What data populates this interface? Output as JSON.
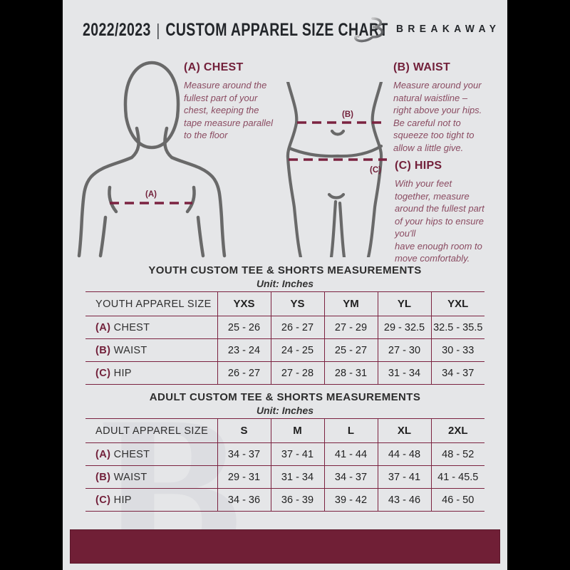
{
  "header": {
    "year": "2022/2023",
    "divider": "|",
    "title": "CUSTOM APPAREL SIZE CHART",
    "brand": "BREAKAWAY"
  },
  "diagram": {
    "chest": {
      "heading": "(A) CHEST",
      "body": "Measure around the\nfullest part of your\nchest, keeping the\ntape measure parallel\nto the floor"
    },
    "waist": {
      "heading": "(B) WAIST",
      "body": "Measure around your\nnatural waistline –\nright above your hips.\nBe careful not to\nsqueeze too tight to\nallow a little give."
    },
    "hips": {
      "heading": "(C) HIPS",
      "body": "With your feet\ntogether, measure\naround the fullest part\nof your hips to ensure\nyou'll\nhave enough room to\nmove comfortably."
    },
    "marker_a": "(A)",
    "marker_b": "(B)",
    "marker_c": "(C)"
  },
  "tables": [
    {
      "title": "YOUTH CUSTOM TEE & SHORTS MEASUREMENTS",
      "unit": "Unit: Inches",
      "size_label": "YOUTH APPAREL SIZE",
      "sizes": [
        "YXS",
        "YS",
        "YM",
        "YL",
        "YXL"
      ],
      "rows": [
        {
          "prefix": "(A)",
          "label": "CHEST",
          "values": [
            "25 - 26",
            "26 - 27",
            "27 - 29",
            "29 - 32.5",
            "32.5 - 35.5"
          ]
        },
        {
          "prefix": "(B)",
          "label": "WAIST",
          "values": [
            "23 - 24",
            "24 - 25",
            "25 - 27",
            "27 - 30",
            "30 - 33"
          ]
        },
        {
          "prefix": "(C)",
          "label": "HIP",
          "values": [
            "26 - 27",
            "27 - 28",
            "28 - 31",
            "31 - 34",
            "34 - 37"
          ]
        }
      ]
    },
    {
      "title": "ADULT CUSTOM TEE & SHORTS MEASUREMENTS",
      "unit": "Unit: Inches",
      "size_label": "ADULT APPAREL SIZE",
      "sizes": [
        "S",
        "M",
        "L",
        "XL",
        "2XL"
      ],
      "rows": [
        {
          "prefix": "(A)",
          "label": "CHEST",
          "values": [
            "34 - 37",
            "37 - 41",
            "41 - 44",
            "44 - 48",
            "48 - 52"
          ]
        },
        {
          "prefix": "(B)",
          "label": "WAIST",
          "values": [
            "29 - 31",
            "31 - 34",
            "34 - 37",
            "37 - 41",
            "41 - 45.5"
          ]
        },
        {
          "prefix": "(C)",
          "label": "HIP",
          "values": [
            "34 - 36",
            "36 - 39",
            "39 - 42",
            "43 - 46",
            "46 - 50"
          ]
        }
      ]
    }
  ],
  "watermark_letter": "B",
  "colors": {
    "maroon": "#72203a",
    "panel_background": "#e5e6e8",
    "figure_outline": "#696969",
    "ink": "#23262a",
    "footer_bar": "#701f36"
  }
}
